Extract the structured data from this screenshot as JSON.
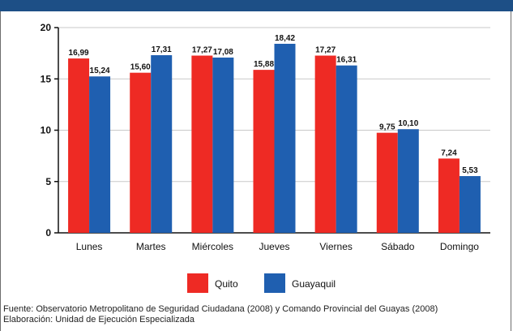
{
  "header": {
    "title": ""
  },
  "chart_data": {
    "type": "bar",
    "categories": [
      "Lunes",
      "Martes",
      "Miércoles",
      "Jueves",
      "Viernes",
      "Sábado",
      "Domingo"
    ],
    "series": [
      {
        "name": "Quito",
        "color": "#ee2a24",
        "values": [
          16.99,
          15.6,
          17.27,
          15.88,
          17.27,
          9.75,
          7.24
        ],
        "labels": [
          "16,99",
          "15,60",
          "17,27",
          "15,88",
          "17,27",
          "9,75",
          "7,24"
        ]
      },
      {
        "name": "Guayaquil",
        "color": "#1f5fb0",
        "values": [
          15.24,
          17.31,
          17.08,
          18.42,
          16.31,
          10.1,
          5.53
        ],
        "labels": [
          "15,24",
          "17,31",
          "17,08",
          "18,42",
          "16,31",
          "10,10",
          "5,53"
        ]
      }
    ],
    "ylim": [
      0,
      20
    ],
    "yticks": [
      0,
      5,
      10,
      15,
      20
    ],
    "grid": true,
    "legend": "bottom-center",
    "xlabel": "",
    "ylabel": ""
  },
  "notes": {
    "source": "Fuente: Observatorio Metropolitano de Seguridad Ciudadana (2008) y Comando Provincial del Guayas (2008)",
    "credit": "Elaboración: Unidad de Ejecución Especializada"
  }
}
